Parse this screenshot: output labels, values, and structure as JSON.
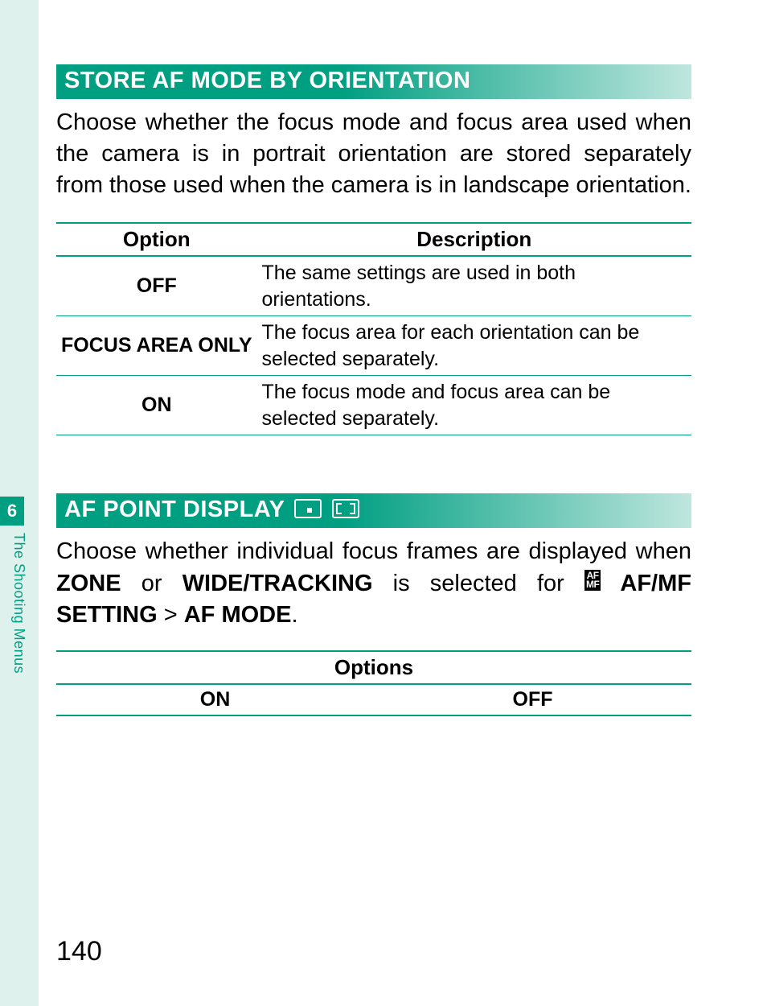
{
  "theme": {
    "accent": "#009f82",
    "accent_light": "#bfe6de",
    "strip_bg": "#def1ed",
    "text": "#000000",
    "header_text": "#ffffff",
    "page_bg": "#ffffff"
  },
  "sidebar": {
    "chapter_number": "6",
    "chapter_label": "The Shooting Menus"
  },
  "section1": {
    "title": "STORE AF MODE BY ORIENTATION",
    "body": "Choose whether the focus mode and focus area used when the camera is in portrait orientation are stored separately from those used when the camera is in landscape orientation.",
    "table": {
      "head_option": "Option",
      "head_desc": "Description",
      "rows": [
        {
          "option": "OFF",
          "desc": "The same settings are used in both orientations."
        },
        {
          "option": "FOCUS AREA ONLY",
          "desc": "The focus area for each orientation can be selected separately."
        },
        {
          "option": "ON",
          "desc": "The focus mode and focus area can be selected separately."
        }
      ]
    }
  },
  "section2": {
    "title": "AF POINT DISPLAY",
    "icons": [
      "af-point-dot-icon",
      "af-point-corners-icon"
    ],
    "body_pre": "Choose whether individual focus frames are displayed when ",
    "body_bold1": "ZONE",
    "body_mid1": " or ",
    "body_bold2": "WIDE/TRACKING",
    "body_mid2": " is selected for ",
    "afmf_icon_text": "AF\nMF",
    "body_bold3": " AF/MF SETTING",
    "body_gt": " > ",
    "body_bold4": "AF MODE",
    "body_end": ".",
    "table": {
      "head": "Options",
      "opt_on": "ON",
      "opt_off": "OFF"
    }
  },
  "page_number": "140"
}
